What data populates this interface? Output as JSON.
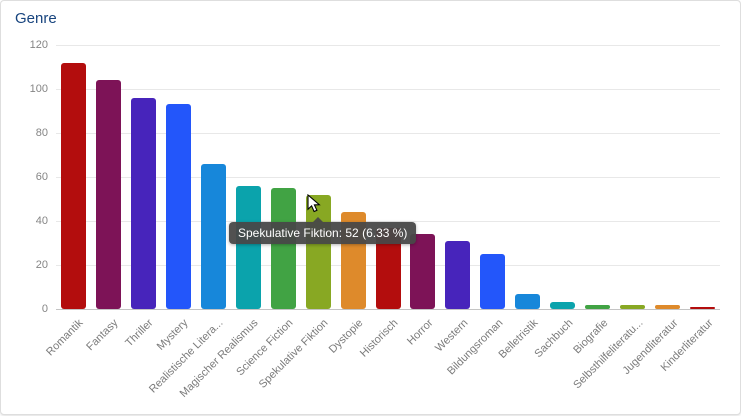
{
  "chart_data": {
    "type": "bar",
    "title": "Genre",
    "categories": [
      "Romantik",
      "Fantasy",
      "Thriller",
      "Mystery",
      "Realistische Litera...",
      "Magischer Realismus",
      "Science Fiction",
      "Spekulative Fiktion",
      "Dystopie",
      "Historisch",
      "Horror",
      "Western",
      "Bildungsroman",
      "Belletristik",
      "Sachbuch",
      "Biografie",
      "Selbsthilfeliteratu...",
      "Jugendliteratur",
      "Kinderliteratur"
    ],
    "values": [
      112,
      104,
      96,
      93,
      66,
      56,
      55,
      52,
      44,
      37,
      34,
      31,
      25,
      7,
      3,
      2,
      2,
      2,
      1
    ],
    "colors": [
      "#b30d0d",
      "#7d1357",
      "#4724bb",
      "#2356fa",
      "#1787da",
      "#0ba3ac",
      "#41a344",
      "#88a823",
      "#de8a2b",
      "#b30d0d",
      "#7d1357",
      "#4724bb",
      "#2356fa",
      "#1787da",
      "#0ba3ac",
      "#41a344",
      "#88a823",
      "#de8a2b",
      "#b30d0d"
    ],
    "xlabel": "",
    "ylabel": "",
    "ylim": [
      0,
      120
    ],
    "yticks": [
      0,
      20,
      40,
      60,
      80,
      100,
      120
    ],
    "grid": "horizontal",
    "legend": "none",
    "tooltip": {
      "text": "Spekulative Fiktion: 52 (6.33 %)",
      "hovered_category": "Spekulative Fiktion"
    }
  },
  "theme": {
    "title_color": "#17447e",
    "grid_color": "#e8e8e8",
    "axis_color": "#c4c4c4",
    "tick_color": "#858585",
    "tooltip_bg": "#484848",
    "tooltip_text_color": "#ffffff"
  }
}
